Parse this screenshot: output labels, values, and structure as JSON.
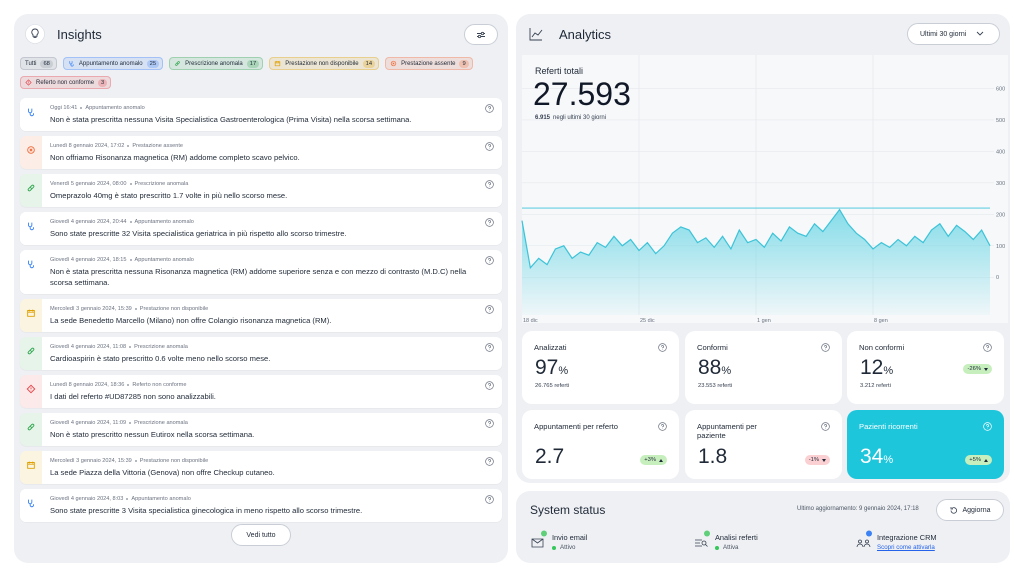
{
  "insights": {
    "title": "Insights",
    "filters": [
      {
        "label": "Tutti",
        "count": 68,
        "color": "#8a919c"
      },
      {
        "label": "Appuntamento anomalo",
        "count": 25,
        "color": "#3b82f6"
      },
      {
        "label": "Prescrizione anomala",
        "count": 17,
        "color": "#34a853"
      },
      {
        "label": "Prestazione non disponibile",
        "count": 14,
        "color": "#e0a100"
      },
      {
        "label": "Prestazione assente",
        "count": 9,
        "color": "#ef6b3b"
      },
      {
        "label": "Referto non conforme",
        "count": 3,
        "color": "#e5484d"
      }
    ],
    "items": [
      {
        "date": "Oggi 16:41",
        "category": "Appuntamento anomalo",
        "text": "Non è stata prescritta nessuna Visita Specialistica Gastroenterologica (Prima Visita) nella scorsa settimana."
      },
      {
        "date": "Lunedì 8 gennaio 2024, 17:02",
        "category": "Prestazione assente",
        "text": "Non offriamo Risonanza magnetica (RM) addome completo scavo pelvico."
      },
      {
        "date": "Venerdì 5 gennaio 2024, 08:00",
        "category": "Prescrizione anomala",
        "text": "Omeprazolo 40mg è stato prescritto 1.7 volte in più nello scorso mese."
      },
      {
        "date": "Giovedì 4 gennaio 2024, 20:44",
        "category": "Appuntamento anomalo",
        "text": "Sono state prescritte 32 Visita specialistica geriatrica in più rispetto allo scorso trimestre."
      },
      {
        "date": "Giovedì 4 gennaio 2024, 18:15",
        "category": "Appuntamento anomalo",
        "text": "Non è stata prescritta nessuna Risonanza magnetica (RM) addome superiore senza e con mezzo di contrasto (M.D.C) nella scorsa settimana."
      },
      {
        "date": "Mercoledì 3 gennaio 2024, 15:39",
        "category": "Prestazione non disponibile",
        "text": "La sede Benedetto Marcello (Milano) non offre Colangio risonanza magnetica (RM)."
      },
      {
        "date": "Giovedì 4 gennaio 2024, 11:08",
        "category": "Prescrizione anomala",
        "text": "Cardioaspirin è stato prescritto 0.6 volte meno nello scorso mese."
      },
      {
        "date": "Lunedì 8 gennaio 2024, 18:36",
        "category": "Referto non conforme",
        "text": "I dati del referto #UD87285 non sono analizzabili."
      },
      {
        "date": "Giovedì 4 gennaio 2024, 11:09",
        "category": "Prescrizione anomala",
        "text": "Non è stato prescritto nessun Eutirox nella scorsa settimana."
      },
      {
        "date": "Mercoledì 3 gennaio 2024, 15:39",
        "category": "Prestazione non disponibile",
        "text": "La sede Piazza della Vittoria (Genova) non offre Checkup cutaneo."
      },
      {
        "date": "Giovedì 4 gennaio 2024, 8:03",
        "category": "Appuntamento anomalo",
        "text": "Sono state prescritte 3 Visita specialistica ginecologica in meno rispetto allo scorso trimestre."
      }
    ],
    "more_button": "Vedi tutto"
  },
  "analytics": {
    "title": "Analytics",
    "period": "Ultimi 30 giorni",
    "total_label": "Referti totali",
    "total": "27.593",
    "recent": "6.915",
    "recent_label": "negli ultimi 30 giorni",
    "cards": [
      {
        "label": "Analizzati",
        "value": 97,
        "unit": "%",
        "sub": "26.765 referti"
      },
      {
        "label": "Conformi",
        "value": 88,
        "unit": "%",
        "sub": "23.553 referti"
      },
      {
        "label": "Non conformi",
        "value": 12,
        "unit": "%",
        "sub": "3.212 referti",
        "change": "-26%",
        "badge_color": "#c6efbd"
      },
      {
        "label": "Appuntamenti per referto",
        "value": 2.7,
        "change": "+3%",
        "badge_color": "#c6efbd"
      },
      {
        "label": "Appuntamenti per paziente",
        "value": 1.8,
        "change": "-1%",
        "badge_color": "#fbd0d3"
      },
      {
        "label": "Pazienti ricorrenti",
        "value": 34,
        "unit": "%",
        "change": "+5%",
        "badge_color": "#c6efbd",
        "highlight": true
      }
    ]
  },
  "chart_data": {
    "type": "area",
    "categories": [
      "18 dic",
      null,
      null,
      null,
      null,
      null,
      null,
      null,
      null,
      null,
      null,
      null,
      null,
      null,
      "25 dic",
      null,
      null,
      null,
      null,
      null,
      null,
      null,
      null,
      null,
      null,
      null,
      null,
      null,
      "1 gen",
      null,
      null,
      null,
      null,
      null,
      null,
      null,
      null,
      null,
      null,
      null,
      null,
      null,
      "8 gen",
      null,
      null,
      null,
      null,
      null,
      null,
      null,
      null,
      null,
      null,
      null,
      null,
      null,
      null
    ],
    "values": [
      180,
      30,
      60,
      40,
      90,
      100,
      60,
      80,
      70,
      110,
      95,
      130,
      100,
      120,
      85,
      110,
      75,
      100,
      140,
      160,
      150,
      110,
      125,
      95,
      130,
      90,
      150,
      110,
      120,
      95,
      140,
      115,
      160,
      140,
      130,
      170,
      145,
      180,
      215,
      170,
      140,
      120,
      90,
      110,
      95,
      120,
      100,
      130,
      110,
      150,
      170,
      130,
      165,
      145,
      120,
      150,
      100
    ],
    "color": "#3cc3d8",
    "reference_line": 220,
    "ylim": [
      -120,
      700
    ],
    "yticks": [
      0,
      100,
      200,
      300,
      400,
      500,
      600
    ],
    "grid": true
  },
  "system_status": {
    "title": "System status",
    "last_update": "Ultimo aggiornamento: 9 gennaio 2024, 17:18",
    "refresh_button": "Aggiorna",
    "services": [
      {
        "name": "Invio email",
        "status": "Attivo"
      },
      {
        "name": "Analisi referti",
        "status": "Attiva"
      },
      {
        "name": "Integrazione CRM",
        "link": "Scopri come attivarla"
      }
    ]
  }
}
